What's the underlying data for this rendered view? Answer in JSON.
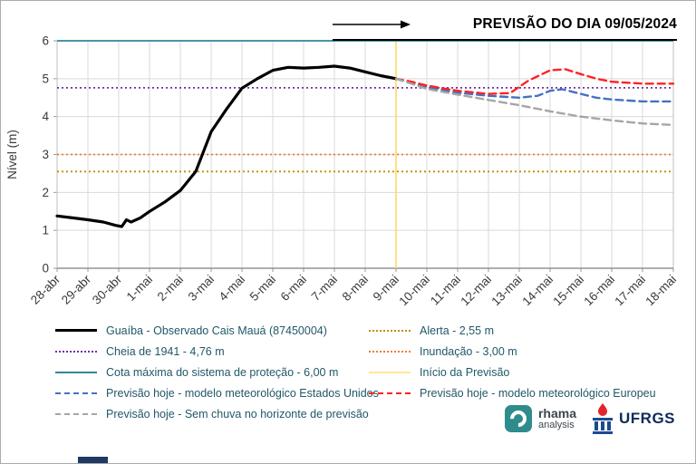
{
  "chart_data": {
    "type": "line",
    "title": "PREVISÃO DO DIA 09/05/2024",
    "ylabel": "Nível (m)",
    "ylim": [
      0,
      6
    ],
    "yticks": [
      0,
      1,
      2,
      3,
      4,
      5,
      6
    ],
    "grid": true,
    "categories": [
      "28-abr",
      "29-abr",
      "30-abr",
      "1-mai",
      "2-mai",
      "3-mai",
      "4-mai",
      "5-mai",
      "6-mai",
      "7-mai",
      "8-mai",
      "9-mai",
      "10-mai",
      "11-mai",
      "12-mai",
      "13-mai",
      "14-mai",
      "15-mai",
      "16-mai",
      "17-mai",
      "18-mai"
    ],
    "series": [
      {
        "name": "Guaíba - Observado Cais Mauá (87450004)",
        "color": "#000000",
        "style": "solid",
        "width": 3.2,
        "points": [
          [
            0,
            1.38
          ],
          [
            0.5,
            1.33
          ],
          [
            1,
            1.28
          ],
          [
            1.5,
            1.22
          ],
          [
            1.9,
            1.13
          ],
          [
            2.1,
            1.1
          ],
          [
            2.25,
            1.28
          ],
          [
            2.4,
            1.22
          ],
          [
            2.7,
            1.33
          ],
          [
            3,
            1.5
          ],
          [
            3.5,
            1.75
          ],
          [
            4,
            2.05
          ],
          [
            4.5,
            2.55
          ],
          [
            5,
            3.6
          ],
          [
            5.5,
            4.2
          ],
          [
            6,
            4.75
          ],
          [
            6.5,
            5.0
          ],
          [
            7,
            5.22
          ],
          [
            7.5,
            5.3
          ],
          [
            8,
            5.28
          ],
          [
            8.5,
            5.3
          ],
          [
            9,
            5.33
          ],
          [
            9.5,
            5.28
          ],
          [
            10,
            5.18
          ],
          [
            10.5,
            5.08
          ],
          [
            11,
            5.0
          ]
        ]
      },
      {
        "name": "Previsão hoje - modelo meteorológico Estados Unidos",
        "color": "#4472C4",
        "style": "dashed",
        "width": 2.4,
        "points": [
          [
            11,
            5.0
          ],
          [
            12,
            4.78
          ],
          [
            13,
            4.63
          ],
          [
            14,
            4.55
          ],
          [
            15,
            4.5
          ],
          [
            15.6,
            4.55
          ],
          [
            16,
            4.68
          ],
          [
            16.4,
            4.72
          ],
          [
            17,
            4.6
          ],
          [
            17.5,
            4.5
          ],
          [
            18,
            4.45
          ],
          [
            19,
            4.4
          ],
          [
            20,
            4.4
          ]
        ]
      },
      {
        "name": "Previsão hoje - modelo meteorológico Europeu",
        "color": "#FF2222",
        "style": "dashed",
        "width": 2.4,
        "points": [
          [
            11,
            5.0
          ],
          [
            11.5,
            4.92
          ],
          [
            12,
            4.82
          ],
          [
            13,
            4.68
          ],
          [
            14,
            4.6
          ],
          [
            14.7,
            4.62
          ],
          [
            15.3,
            4.95
          ],
          [
            16,
            5.22
          ],
          [
            16.5,
            5.25
          ],
          [
            17,
            5.12
          ],
          [
            17.5,
            5.0
          ],
          [
            18,
            4.92
          ],
          [
            19,
            4.87
          ],
          [
            20,
            4.87
          ]
        ]
      },
      {
        "name": "Previsão hoje - Sem chuva no horizonte de previsão",
        "color": "#A6A6A6",
        "style": "dashed",
        "width": 2.4,
        "points": [
          [
            11,
            5.0
          ],
          [
            12,
            4.73
          ],
          [
            13,
            4.58
          ],
          [
            14,
            4.44
          ],
          [
            15,
            4.3
          ],
          [
            16,
            4.14
          ],
          [
            17,
            4.0
          ],
          [
            18,
            3.9
          ],
          [
            19,
            3.82
          ],
          [
            20,
            3.78
          ]
        ]
      }
    ],
    "reference_lines": [
      {
        "name": "Cota máxima do sistema de proteção - 6,00 m",
        "value": 6.0,
        "color": "#31859C",
        "style": "solid"
      },
      {
        "name": "Cheia de 1941 - 4,76 m",
        "value": 4.76,
        "color": "#7030A0",
        "style": "dotted"
      },
      {
        "name": "Inundação - 3,00 m",
        "value": 3.0,
        "color": "#ED7D31",
        "style": "dotted"
      },
      {
        "name": "Alerta - 2,55 m",
        "value": 2.55,
        "color": "#BF8F00",
        "style": "dotted"
      }
    ],
    "vertical_line": {
      "name": "Início da Previsão",
      "x": 11,
      "color": "#FFD966"
    }
  },
  "legend": {
    "left": [
      {
        "label": "Guaíba - Observado Cais Mauá (87450004)",
        "color": "#000000",
        "style": "solid",
        "weight": 3.5
      },
      {
        "label": "Cheia de 1941 - 4,76 m",
        "color": "#7030A0",
        "style": "dotted",
        "weight": 2
      },
      {
        "label": "Cota máxima do sistema de proteção - 6,00 m",
        "color": "#31859C",
        "style": "solid",
        "weight": 2
      },
      {
        "label": "Previsão hoje - modelo meteorológico Estados Unidos",
        "color": "#4472C4",
        "style": "dashed",
        "weight": 2.5
      },
      {
        "label": "Previsão hoje - Sem chuva no horizonte de previsão",
        "color": "#A6A6A6",
        "style": "dashed",
        "weight": 2.5
      }
    ],
    "right": [
      {
        "label": "Alerta  - 2,55 m",
        "color": "#BF8F00",
        "style": "dotted",
        "weight": 2
      },
      {
        "label": "Inundação - 3,00 m",
        "color": "#ED7D31",
        "style": "dotted",
        "weight": 2
      },
      {
        "label": "Início da Previsão",
        "color": "#FFE699",
        "style": "solid",
        "weight": 2
      },
      {
        "label": "Previsão hoje - modelo meteorológico Europeu",
        "color": "#FF2222",
        "style": "dashed",
        "weight": 2.5
      }
    ]
  },
  "logos": {
    "rhama_name": "rhama",
    "rhama_sub": "analysis",
    "ufrgs": "UFRGS"
  }
}
